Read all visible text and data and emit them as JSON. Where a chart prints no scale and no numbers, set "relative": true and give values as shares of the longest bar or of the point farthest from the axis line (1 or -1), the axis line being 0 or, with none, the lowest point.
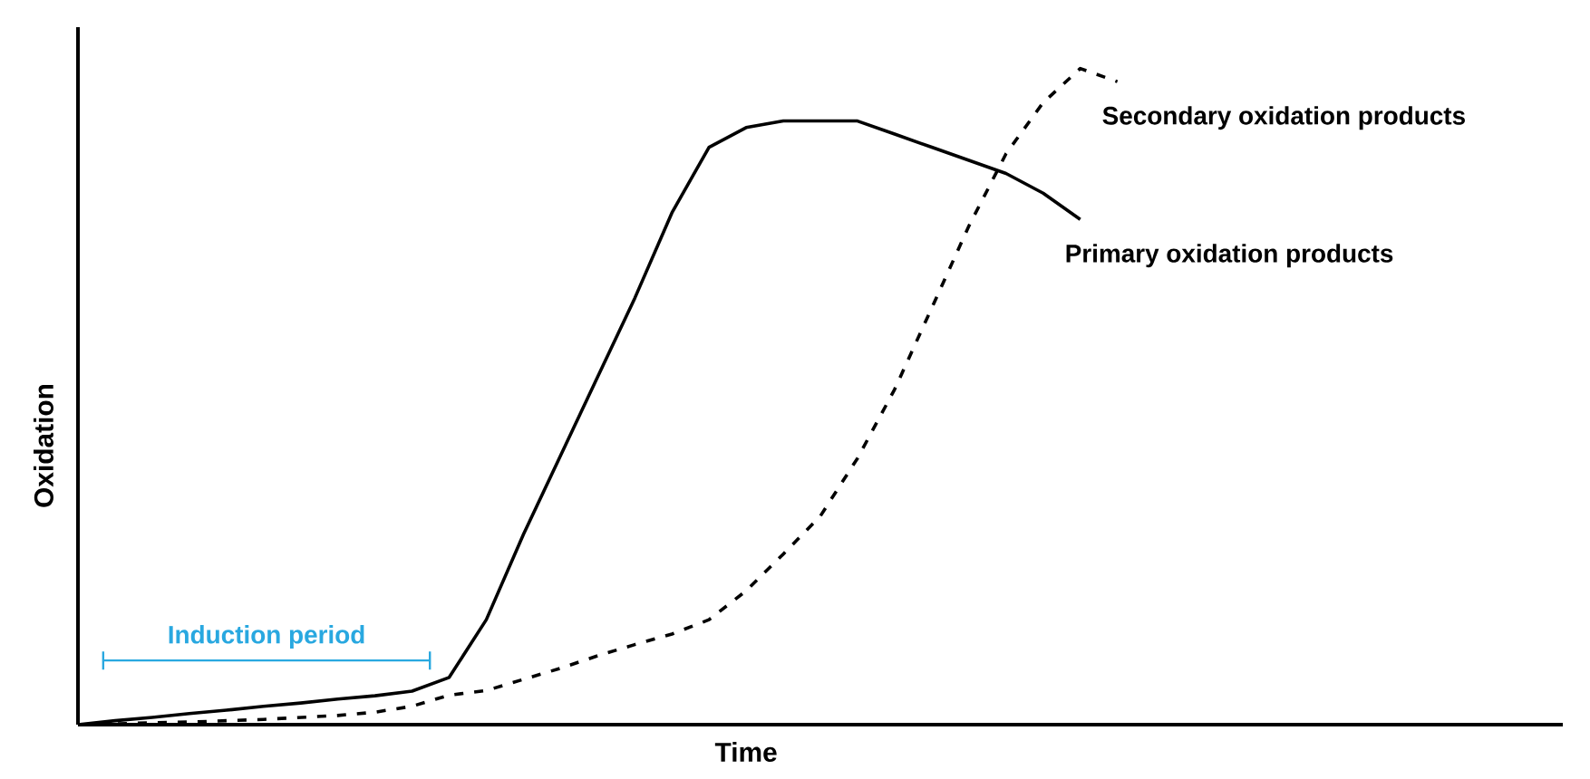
{
  "chart_data": {
    "type": "line",
    "relative": true,
    "xlabel": "Time",
    "ylabel": "Oxidation",
    "categories": [
      null,
      null,
      null,
      null,
      null,
      null,
      null,
      null,
      null,
      null,
      null,
      null,
      null,
      null,
      null,
      null,
      null,
      null,
      null,
      null,
      null,
      null,
      null,
      null,
      null,
      null,
      null,
      null,
      null,
      null,
      null,
      null,
      null,
      null,
      null,
      null,
      null,
      null,
      null,
      null,
      null
    ],
    "series": [
      {
        "name": "Primary oxidation products",
        "color": "#000000",
        "line_style": "solid",
        "values": [
          0,
          0.006,
          0.011,
          0.017,
          0.022,
          0.028,
          0.033,
          0.039,
          0.044,
          0.051,
          0.072,
          0.16,
          0.29,
          0.41,
          0.53,
          0.65,
          0.78,
          0.88,
          0.91,
          0.92,
          0.92,
          0.92,
          0.9,
          0.88,
          0.86,
          0.84,
          0.81,
          0.77,
          null,
          null,
          null,
          null,
          null,
          null,
          null,
          null,
          null,
          null,
          null,
          null,
          null
        ]
      },
      {
        "name": "Secondary oxidation products",
        "color": "#000000",
        "line_style": "dashed",
        "values": [
          0,
          0.001,
          0.003,
          0.004,
          0.006,
          0.008,
          0.011,
          0.014,
          0.019,
          0.028,
          0.045,
          0.052,
          0.069,
          0.086,
          0.105,
          0.122,
          0.138,
          0.16,
          0.204,
          0.26,
          0.318,
          0.406,
          0.511,
          0.635,
          0.76,
          0.87,
          0.948,
          1,
          0.98,
          null,
          null,
          null,
          null,
          null,
          null,
          null,
          null,
          null,
          null,
          null,
          null
        ]
      }
    ],
    "annotations": [
      "Induction period"
    ]
  }
}
